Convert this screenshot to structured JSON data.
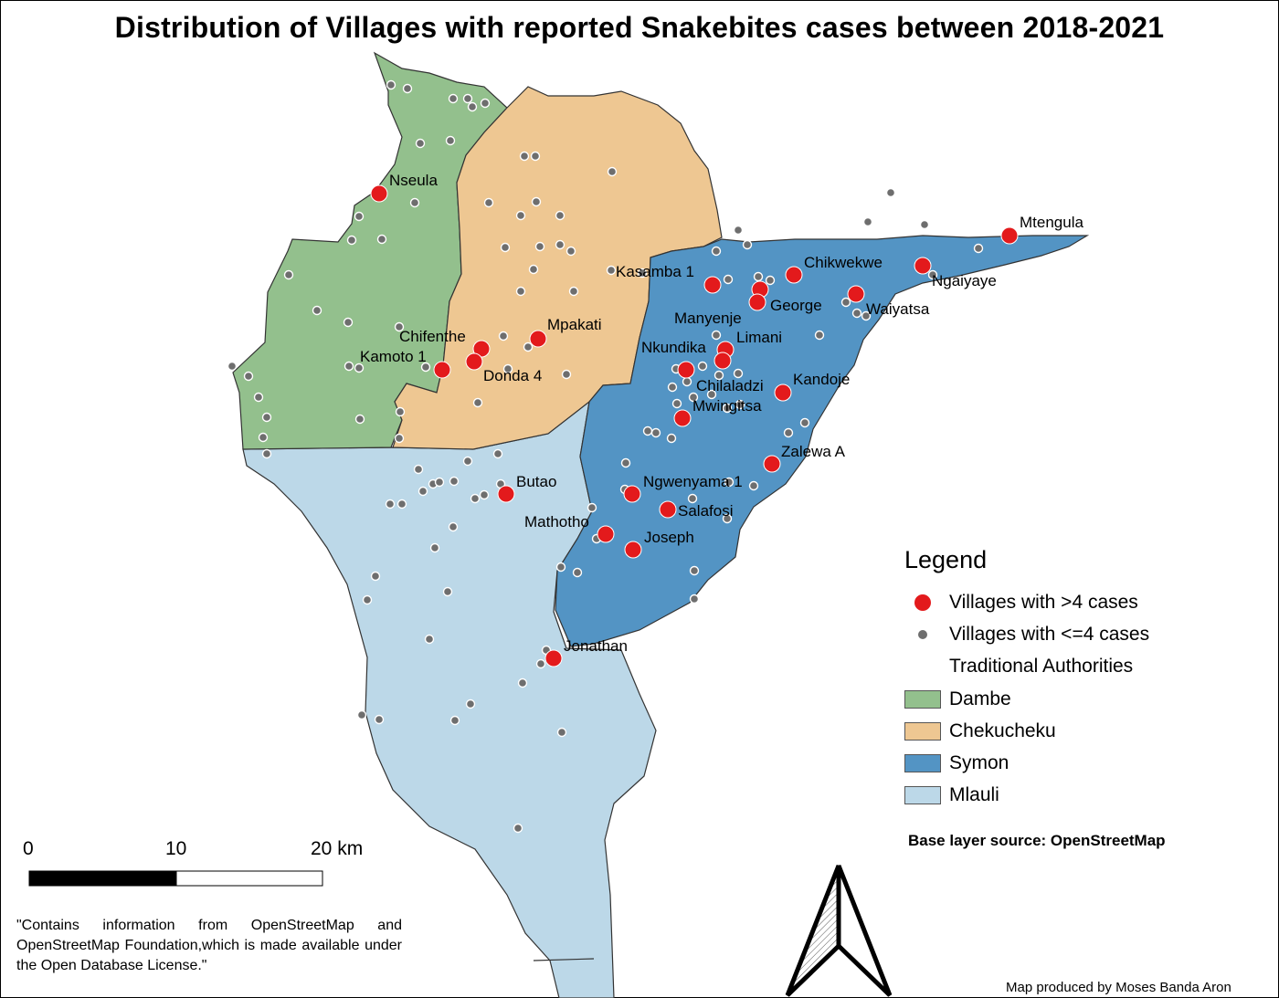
{
  "title": "Distribution of Villages with reported Snakebites cases between 2018-2021",
  "legend": {
    "title": "Legend",
    "items": [
      {
        "label": "Villages with >4 cases",
        "symbol": "red-dot",
        "color": "#e31a1c"
      },
      {
        "label": "Villages with <=4 cases",
        "symbol": "grey-dot",
        "color": "#6e6e6e"
      },
      {
        "label": "Traditional Authorities",
        "symbol": "none"
      },
      {
        "label": "Dambe",
        "symbol": "swatch",
        "color": "#93c08d"
      },
      {
        "label": "Chekucheku",
        "symbol": "swatch",
        "color": "#eec792"
      },
      {
        "label": "Symon",
        "symbol": "swatch",
        "color": "#5394c4"
      },
      {
        "label": "Mlauli",
        "symbol": "swatch",
        "color": "#bcd8e8"
      }
    ]
  },
  "base_layer_source": "Base layer source: OpenStreetMap",
  "credit": "Map produced by Moses Banda Aron",
  "attribution": "\"Contains information from OpenStreetMap and OpenStreetMap Foundation,which is made available under the Open Database License.\"",
  "scale_bar": {
    "labels": [
      "0",
      "10",
      "20 km"
    ]
  },
  "villages_high": [
    {
      "name": "Nseula"
    },
    {
      "name": "Mtengula"
    },
    {
      "name": "Kasamba 1"
    },
    {
      "name": "Chikwekwe"
    },
    {
      "name": "Ngaiyaye"
    },
    {
      "name": "George"
    },
    {
      "name": "Waiyatsa"
    },
    {
      "name": "Manyenje"
    },
    {
      "name": "Limani"
    },
    {
      "name": "Mpakati"
    },
    {
      "name": "Chifenthe"
    },
    {
      "name": "Kamoto 1"
    },
    {
      "name": "Donda 4"
    },
    {
      "name": "Nkundika"
    },
    {
      "name": "Chilaladzi"
    },
    {
      "name": "Kandoje"
    },
    {
      "name": "Mwingitsa"
    },
    {
      "name": "Zalewa A"
    },
    {
      "name": "Butao"
    },
    {
      "name": "Ngwenyama 1"
    },
    {
      "name": "Salafosi"
    },
    {
      "name": "Mathotho"
    },
    {
      "name": "Joseph"
    },
    {
      "name": "Jonathan"
    }
  ]
}
